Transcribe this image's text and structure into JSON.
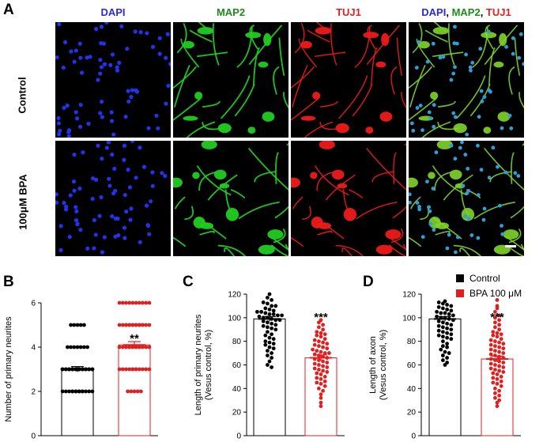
{
  "figure": {
    "panel_labels": [
      "A",
      "B",
      "C",
      "D"
    ],
    "columns": [
      {
        "parts": [
          {
            "text": "DAPI",
            "color": "#2b2bd6"
          }
        ]
      },
      {
        "parts": [
          {
            "text": "MAP2",
            "color": "#1e8a1e"
          }
        ]
      },
      {
        "parts": [
          {
            "text": "TUJ1",
            "color": "#e02020"
          }
        ]
      },
      {
        "parts": [
          {
            "text": "DAPI",
            "color": "#2b2bd6"
          },
          {
            "text": ", ",
            "color": "#000000"
          },
          {
            "text": "MAP2",
            "color": "#1e8a1e"
          },
          {
            "text": ", ",
            "color": "#000000"
          },
          {
            "text": "TUJ1",
            "color": "#e02020"
          }
        ]
      }
    ],
    "rows": [
      "Control",
      "100μM BPA"
    ],
    "legend": [
      {
        "label": "Control",
        "color": "#000000"
      },
      {
        "label": "BPA 100 μM",
        "color": "#e02020"
      }
    ]
  },
  "chart_data": [
    {
      "type": "scatter",
      "panel": "B",
      "ylabel": "Number of primary neurites",
      "ylim": [
        0,
        6
      ],
      "yticks": [
        0,
        2,
        4,
        6
      ],
      "significance": "**",
      "series": [
        {
          "name": "Control",
          "mean": 3.0,
          "sem": 0.12,
          "counts": {
            "2": 14,
            "3": 26,
            "4": 7,
            "5": 5
          }
        },
        {
          "name": "BPA 100 μM",
          "mean": 4.1,
          "sem": 0.15,
          "counts": {
            "2": 5,
            "3": 12,
            "4": 14,
            "5": 16,
            "6": 10
          }
        }
      ]
    },
    {
      "type": "scatter",
      "panel": "C",
      "ylabel": "Length of primary neurites\n(Vesus control, %)",
      "ylim": [
        0,
        120
      ],
      "yticks": [
        0,
        20,
        40,
        60,
        80,
        100,
        120
      ],
      "significance": "***",
      "series": [
        {
          "name": "Control",
          "mean": 99,
          "sem": 2,
          "values": [
            120,
            117,
            115,
            113,
            112,
            110,
            110,
            108,
            107,
            106,
            105,
            105,
            104,
            103,
            103,
            102,
            102,
            101,
            100,
            100,
            99,
            98,
            98,
            97,
            96,
            95,
            94,
            93,
            92,
            91,
            90,
            88,
            86,
            85,
            83,
            82,
            80,
            79,
            78,
            77,
            75,
            74,
            72,
            70,
            68,
            66,
            63,
            60,
            58
          ]
        },
        {
          "name": "BPA 100 μM",
          "mean": 66,
          "sem": 2.5,
          "values": [
            98,
            96,
            94,
            92,
            90,
            88,
            87,
            86,
            85,
            84,
            82,
            81,
            80,
            79,
            78,
            77,
            76,
            75,
            74,
            73,
            72,
            71,
            70,
            70,
            69,
            68,
            67,
            66,
            65,
            64,
            63,
            62,
            61,
            60,
            59,
            58,
            57,
            56,
            55,
            54,
            53,
            52,
            50,
            49,
            48,
            46,
            45,
            44,
            42,
            40,
            38,
            35,
            32,
            28,
            25
          ]
        }
      ]
    },
    {
      "type": "scatter",
      "panel": "D",
      "ylabel": "Length of axon\n(Vesus control, %)",
      "ylim": [
        0,
        120
      ],
      "yticks": [
        0,
        20,
        40,
        60,
        80,
        100,
        120
      ],
      "significance": "***",
      "series": [
        {
          "name": "Control",
          "mean": 99,
          "sem": 2,
          "values": [
            114,
            113,
            112,
            111,
            110,
            109,
            108,
            107,
            106,
            105,
            104,
            104,
            103,
            102,
            101,
            100,
            100,
            99,
            98,
            97,
            96,
            95,
            94,
            93,
            92,
            91,
            90,
            89,
            88,
            87,
            86,
            85,
            84,
            83,
            82,
            80,
            78,
            76,
            75,
            73,
            71,
            70,
            68,
            66,
            64,
            62,
            60
          ]
        },
        {
          "name": "BPA 100 μM",
          "mean": 65,
          "sem": 2.5,
          "values": [
            115,
            110,
            108,
            105,
            102,
            100,
            98,
            96,
            94,
            92,
            90,
            88,
            87,
            86,
            85,
            84,
            82,
            81,
            80,
            79,
            78,
            77,
            76,
            75,
            74,
            73,
            72,
            71,
            70,
            69,
            68,
            67,
            66,
            65,
            64,
            63,
            62,
            61,
            60,
            59,
            58,
            57,
            56,
            55,
            54,
            53,
            52,
            50,
            49,
            48,
            46,
            45,
            44,
            42,
            40,
            38,
            36,
            34,
            32,
            30,
            28,
            25
          ]
        }
      ]
    }
  ]
}
